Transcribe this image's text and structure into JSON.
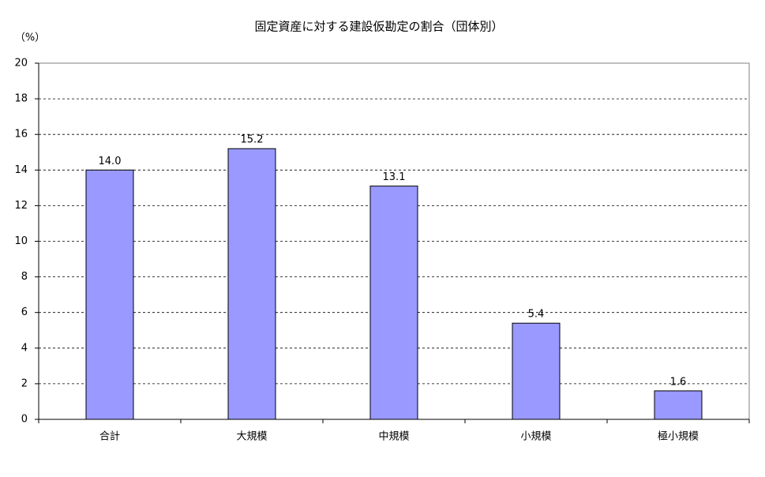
{
  "chart_data": {
    "type": "bar",
    "title": "固定資産に対する建設仮勘定の割合（団体別）",
    "y_label": "（%）",
    "categories": [
      "合計",
      "大規模",
      "中規模",
      "小規模",
      "極小規模"
    ],
    "values": [
      14.0,
      15.2,
      13.1,
      5.4,
      1.6
    ],
    "value_labels": [
      "14.0",
      "15.2",
      "13.1",
      "5.4",
      "1.6"
    ],
    "color": "#9999ff",
    "ylim": [
      0,
      20
    ],
    "yticks": [
      0,
      2,
      4,
      6,
      8,
      10,
      12,
      14,
      16,
      18,
      20
    ],
    "grid": true
  }
}
